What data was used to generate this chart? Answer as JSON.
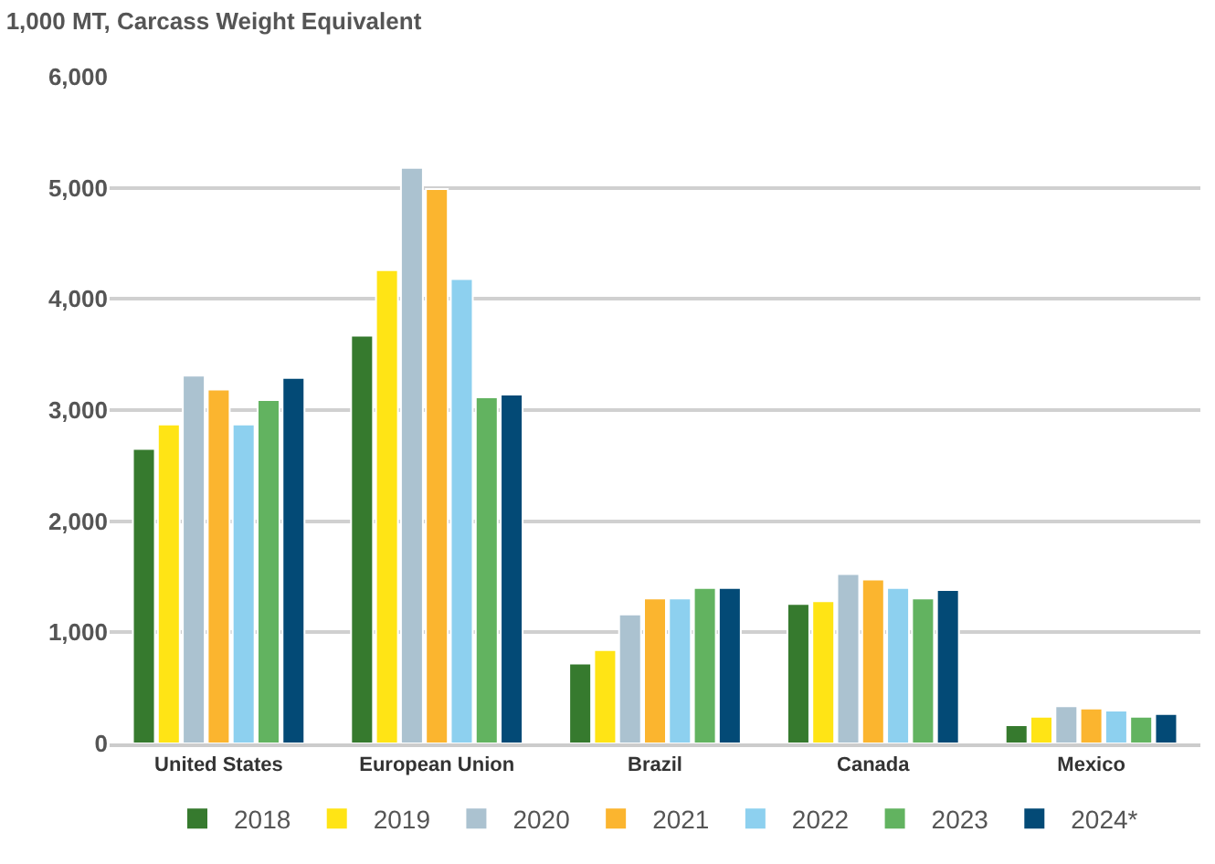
{
  "chart_data": {
    "type": "bar",
    "title": "1,000 MT, Carcass Weight Equivalent",
    "categories": [
      "United States",
      "European Union",
      "Brazil",
      "Canada",
      "Mexico"
    ],
    "series": [
      {
        "name": "2018",
        "color": "#367a2e",
        "values": [
          2650,
          3670,
          720,
          1255,
          165
        ]
      },
      {
        "name": "2019",
        "color": "#ffe415",
        "values": [
          2870,
          4260,
          840,
          1280,
          240
        ]
      },
      {
        "name": "2020",
        "color": "#abc2d0",
        "values": [
          3310,
          5180,
          1160,
          1525,
          335
        ]
      },
      {
        "name": "2021",
        "color": "#fbb52f",
        "values": [
          3185,
          4990,
          1305,
          1475,
          315
        ]
      },
      {
        "name": "2022",
        "color": "#8dd0ef",
        "values": [
          2870,
          4180,
          1305,
          1400,
          295
        ]
      },
      {
        "name": "2023",
        "color": "#62b360",
        "values": [
          3090,
          3115,
          1400,
          1305,
          240
        ]
      },
      {
        "name": "2024*",
        "color": "#034a76",
        "values": [
          3290,
          3140,
          1400,
          1380,
          265
        ]
      }
    ],
    "ylim": [
      0,
      6000
    ],
    "yticks": [
      {
        "value": 0,
        "label": "0"
      },
      {
        "value": 1000,
        "label": "1,000"
      },
      {
        "value": 2000,
        "label": "2,000"
      },
      {
        "value": 3000,
        "label": "3,000"
      },
      {
        "value": 4000,
        "label": "4,000"
      },
      {
        "value": 5000,
        "label": "5,000"
      },
      {
        "value": 6000,
        "label": "6,000"
      }
    ],
    "grid": "y",
    "legend": "bottom"
  }
}
